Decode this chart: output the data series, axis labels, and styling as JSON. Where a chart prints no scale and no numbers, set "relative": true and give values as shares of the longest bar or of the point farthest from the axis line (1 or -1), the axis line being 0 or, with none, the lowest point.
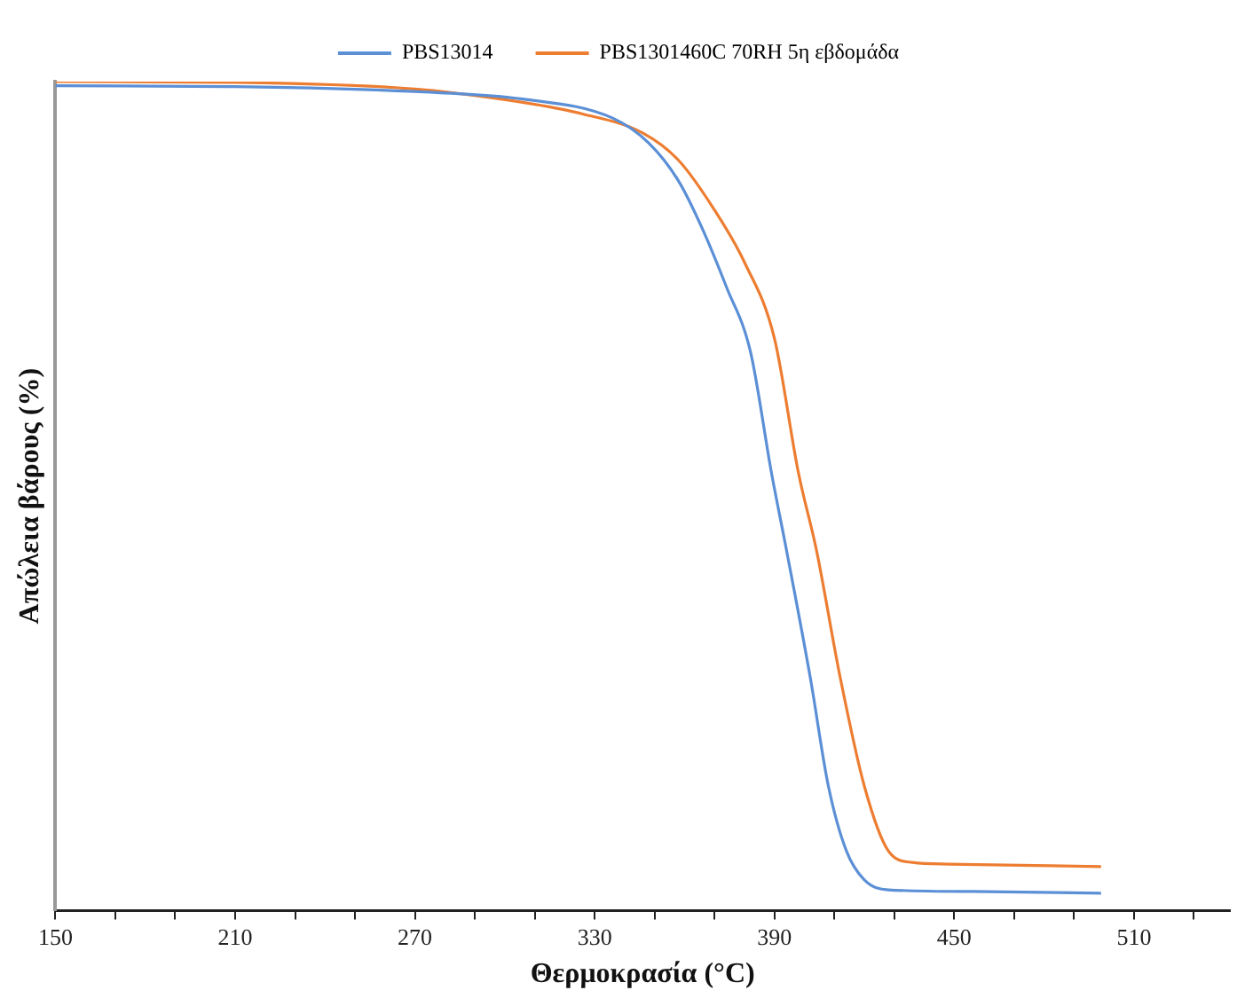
{
  "chart_data": {
    "type": "line",
    "xlabel": "Θερμοκρασία (°C)",
    "ylabel": "Απώλεια βάρους (%)",
    "relative": true,
    "legend": "top",
    "grid": false,
    "marker": "none",
    "line_style": "solid",
    "xlim": [
      150,
      542
    ],
    "xticks": [
      150,
      {
        "value": 170,
        "label": null
      },
      {
        "value": 190,
        "label": null
      },
      210,
      {
        "value": 230,
        "label": null
      },
      {
        "value": 250,
        "label": null
      },
      270,
      {
        "value": 290,
        "label": null
      },
      {
        "value": 310,
        "label": null
      },
      330,
      {
        "value": 350,
        "label": null
      },
      {
        "value": 370,
        "label": null
      },
      390,
      {
        "value": 410,
        "label": null
      },
      {
        "value": 430,
        "label": null
      },
      450,
      {
        "value": 470,
        "label": null
      },
      {
        "value": 490,
        "label": null
      },
      510,
      {
        "value": 530,
        "label": null
      }
    ],
    "series": [
      {
        "name": "PBS13014",
        "color": "#5b8fd6",
        "x": [
          150,
          210,
          270,
          306,
          336,
          348,
          358,
          366,
          374,
          382,
          389,
          394,
          402,
          408,
          414,
          420,
          428,
          456,
          499
        ],
        "values": [
          0.995,
          0.994,
          0.988,
          0.979,
          0.956,
          0.926,
          0.88,
          0.822,
          0.752,
          0.674,
          0.528,
          0.435,
          0.28,
          0.15,
          0.072,
          0.037,
          0.025,
          0.023,
          0.021
        ]
      },
      {
        "name": "PBS1301460C 70RH 5η εβδομάδα",
        "color": "#ed7d31",
        "x": [
          150,
          210,
          270,
          306,
          326,
          346,
          358,
          370,
          380,
          390,
          398,
          404,
          412,
          420,
          428,
          436,
          448,
          499
        ],
        "values": [
          1.0,
          0.999,
          0.991,
          0.975,
          0.961,
          0.938,
          0.905,
          0.845,
          0.782,
          0.69,
          0.528,
          0.435,
          0.28,
          0.15,
          0.072,
          0.058,
          0.056,
          0.053
        ]
      }
    ]
  }
}
